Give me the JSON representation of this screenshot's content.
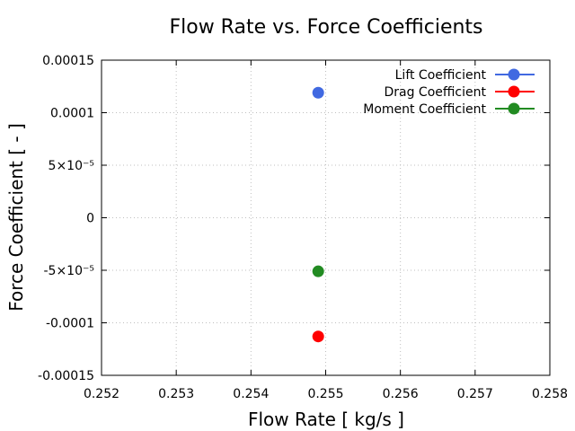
{
  "chart_data": {
    "type": "scatter",
    "title": "Flow Rate vs. Force Coefficients",
    "xlabel": "Flow Rate [ kg/s ]",
    "ylabel": "Force Coefficient [ - ]",
    "xlim": [
      0.252,
      0.258
    ],
    "ylim": [
      -0.00015,
      0.00015
    ],
    "grid": true,
    "legend_position": "top-right",
    "x_ticks": [
      0.252,
      0.253,
      0.254,
      0.255,
      0.256,
      0.257,
      0.258
    ],
    "x_tick_labels": [
      "0.252",
      "0.253",
      "0.254",
      "0.255",
      "0.256",
      "0.257",
      "0.258"
    ],
    "y_ticks": [
      0.00015,
      0.0001,
      5e-05,
      0,
      -5e-05,
      -0.0001,
      -0.00015
    ],
    "y_tick_labels": [
      "0.00015",
      "0.0001",
      "5×10⁻⁵",
      "0",
      "-5×10⁻⁵",
      "-0.0001",
      "-0.00015"
    ],
    "series": [
      {
        "name": "Lift Coefficient",
        "color": "#4169e1",
        "x": [
          0.2549
        ],
        "y": [
          0.000119
        ]
      },
      {
        "name": "Drag Coefficient",
        "color": "#ff0000",
        "x": [
          0.2549
        ],
        "y": [
          -0.000113
        ]
      },
      {
        "name": "Moment Coefficient",
        "color": "#228b22",
        "x": [
          0.2549
        ],
        "y": [
          -5.1e-05
        ]
      }
    ]
  }
}
